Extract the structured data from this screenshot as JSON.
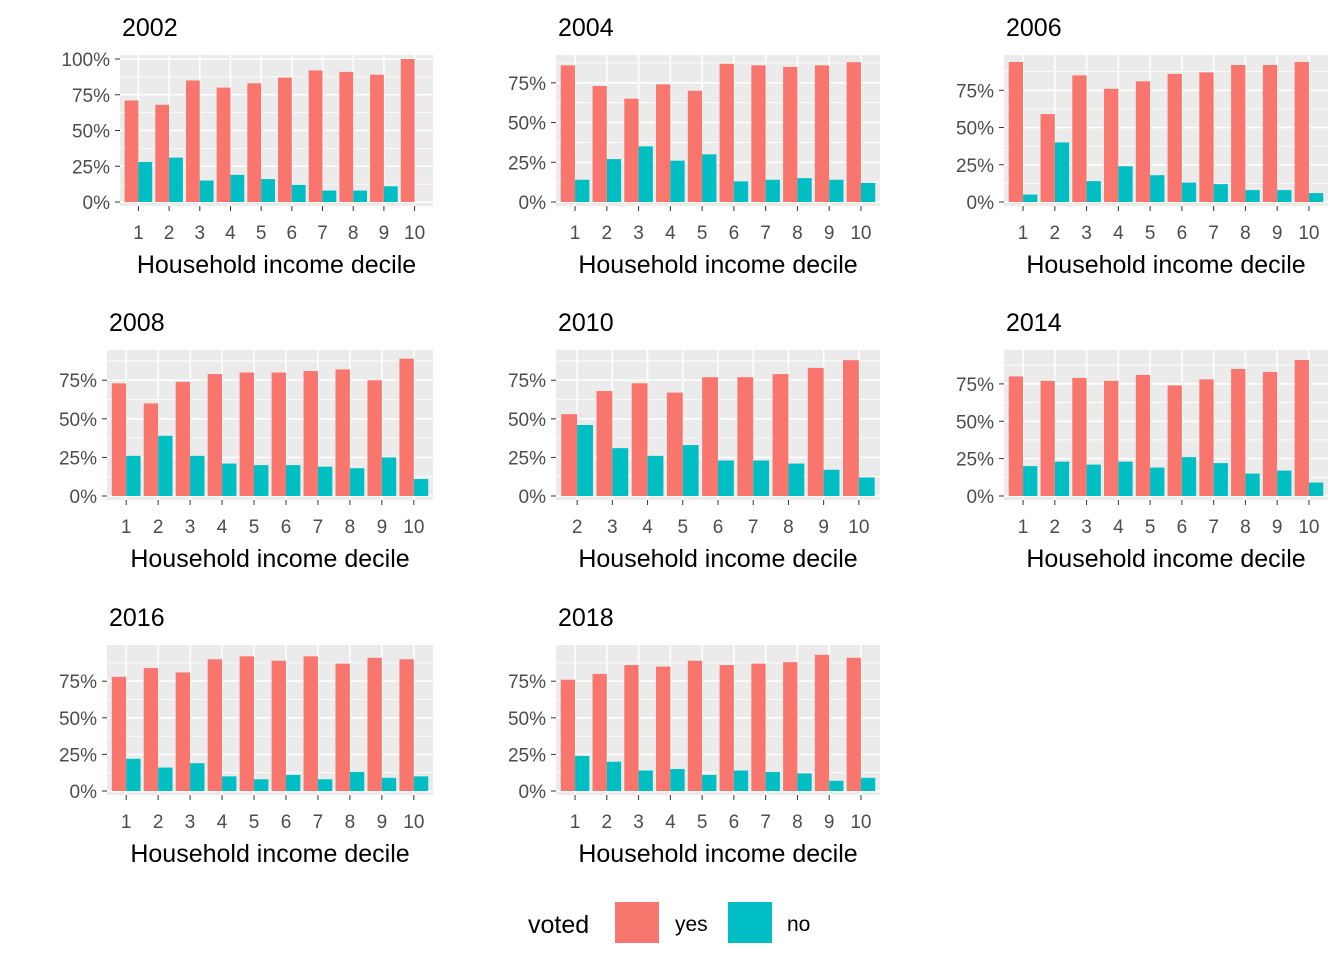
{
  "chart_data": [
    {
      "type": "bar",
      "title": "2002",
      "xlabel": "Household income decile",
      "ylabel": "",
      "categories": [
        "1",
        "2",
        "3",
        "4",
        "5",
        "6",
        "7",
        "8",
        "9",
        "10"
      ],
      "ylim": [
        0,
        100
      ],
      "yticks": [
        "0%",
        "25%",
        "50%",
        "75%",
        "100%"
      ],
      "series": [
        {
          "name": "yes",
          "values": [
            71,
            68,
            85,
            80,
            83,
            87,
            92,
            91,
            89,
            100
          ]
        },
        {
          "name": "no",
          "values": [
            28,
            31,
            15,
            19,
            16,
            12,
            8,
            8,
            11,
            0
          ]
        }
      ]
    },
    {
      "type": "bar",
      "title": "2004",
      "xlabel": "Household income decile",
      "ylabel": "",
      "categories": [
        "1",
        "2",
        "3",
        "4",
        "5",
        "6",
        "7",
        "8",
        "9",
        "10"
      ],
      "ylim": [
        0,
        90
      ],
      "yticks": [
        "0%",
        "25%",
        "50%",
        "75%"
      ],
      "series": [
        {
          "name": "yes",
          "values": [
            86,
            73,
            65,
            74,
            70,
            87,
            86,
            85,
            86,
            88
          ]
        },
        {
          "name": "no",
          "values": [
            14,
            27,
            35,
            26,
            30,
            13,
            14,
            15,
            14,
            12
          ]
        }
      ]
    },
    {
      "type": "bar",
      "title": "2006",
      "xlabel": "Household income decile",
      "ylabel": "",
      "categories": [
        "1",
        "2",
        "3",
        "4",
        "5",
        "6",
        "7",
        "8",
        "9",
        "10"
      ],
      "ylim": [
        0,
        96
      ],
      "yticks": [
        "0%",
        "25%",
        "50%",
        "75%"
      ],
      "series": [
        {
          "name": "yes",
          "values": [
            94,
            59,
            85,
            76,
            81,
            86,
            87,
            92,
            92,
            94
          ]
        },
        {
          "name": "no",
          "values": [
            5,
            40,
            14,
            24,
            18,
            13,
            12,
            8,
            8,
            6
          ]
        }
      ]
    },
    {
      "type": "bar",
      "title": "2008",
      "xlabel": "Household income decile",
      "ylabel": "",
      "categories": [
        "1",
        "2",
        "3",
        "4",
        "5",
        "6",
        "7",
        "8",
        "9",
        "10"
      ],
      "ylim": [
        0,
        92
      ],
      "yticks": [
        "0%",
        "25%",
        "50%",
        "75%"
      ],
      "series": [
        {
          "name": "yes",
          "values": [
            73,
            60,
            74,
            79,
            80,
            80,
            81,
            82,
            75,
            89
          ]
        },
        {
          "name": "no",
          "values": [
            26,
            39,
            26,
            21,
            20,
            20,
            19,
            18,
            25,
            11
          ]
        }
      ]
    },
    {
      "type": "bar",
      "title": "2010",
      "xlabel": "Household income decile",
      "ylabel": "",
      "categories": [
        "2",
        "3",
        "4",
        "5",
        "6",
        "7",
        "8",
        "9",
        "10"
      ],
      "ylim": [
        0,
        92
      ],
      "yticks": [
        "0%",
        "25%",
        "50%",
        "75%"
      ],
      "series": [
        {
          "name": "yes",
          "values": [
            53,
            68,
            73,
            67,
            77,
            77,
            79,
            83,
            88
          ]
        },
        {
          "name": "no",
          "values": [
            46,
            31,
            26,
            33,
            23,
            23,
            21,
            17,
            12
          ]
        }
      ]
    },
    {
      "type": "bar",
      "title": "2014",
      "xlabel": "Household income decile",
      "ylabel": "",
      "categories": [
        "1",
        "2",
        "3",
        "4",
        "5",
        "6",
        "7",
        "8",
        "9",
        "10"
      ],
      "ylim": [
        0,
        95
      ],
      "yticks": [
        "0%",
        "25%",
        "50%",
        "75%"
      ],
      "series": [
        {
          "name": "yes",
          "values": [
            80,
            77,
            79,
            77,
            81,
            74,
            78,
            85,
            83,
            91
          ]
        },
        {
          "name": "no",
          "values": [
            20,
            23,
            21,
            23,
            19,
            26,
            22,
            15,
            17,
            9
          ]
        }
      ]
    },
    {
      "type": "bar",
      "title": "2016",
      "xlabel": "Household income decile",
      "ylabel": "",
      "categories": [
        "1",
        "2",
        "3",
        "4",
        "5",
        "6",
        "7",
        "8",
        "9",
        "10"
      ],
      "ylim": [
        0,
        97
      ],
      "yticks": [
        "0%",
        "25%",
        "50%",
        "75%"
      ],
      "series": [
        {
          "name": "yes",
          "values": [
            78,
            84,
            81,
            90,
            92,
            89,
            92,
            87,
            91,
            90
          ]
        },
        {
          "name": "no",
          "values": [
            22,
            16,
            19,
            10,
            8,
            11,
            8,
            13,
            9,
            10
          ]
        }
      ]
    },
    {
      "type": "bar",
      "title": "2018",
      "xlabel": "Household income decile",
      "ylabel": "",
      "categories": [
        "1",
        "2",
        "3",
        "4",
        "5",
        "6",
        "7",
        "8",
        "9",
        "10"
      ],
      "ylim": [
        0,
        97
      ],
      "yticks": [
        "0%",
        "25%",
        "50%",
        "75%"
      ],
      "series": [
        {
          "name": "yes",
          "values": [
            76,
            80,
            86,
            85,
            89,
            86,
            87,
            88,
            93,
            91
          ]
        },
        {
          "name": "no",
          "values": [
            24,
            20,
            14,
            15,
            11,
            14,
            13,
            12,
            7,
            9
          ]
        }
      ]
    }
  ],
  "legend": {
    "title": "voted",
    "placement": "bottom",
    "items": [
      {
        "label": "yes",
        "color": "#F8766D"
      },
      {
        "label": "no",
        "color": "#00BFC4"
      }
    ]
  },
  "colors": {
    "yes": "#F8766D",
    "no": "#00BFC4",
    "panel_background": "#EBEBEB",
    "grid": "#FFFFFF"
  }
}
